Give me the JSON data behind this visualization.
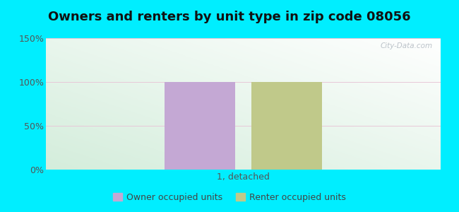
{
  "title": "Owners and renters by unit type in zip code 08056",
  "title_fontsize": 13,
  "categories": [
    "1, detached"
  ],
  "owner_values": [
    100
  ],
  "renter_values": [
    100
  ],
  "owner_color": "#c4a8d4",
  "renter_color": "#c0c98a",
  "ylim": [
    0,
    150
  ],
  "yticks": [
    0,
    50,
    100,
    150
  ],
  "ytick_labels": [
    "0%",
    "50%",
    "100%",
    "150%"
  ],
  "outer_background": "#00eeff",
  "legend_owner": "Owner occupied units",
  "legend_renter": "Renter occupied units",
  "watermark": "City-Data.com",
  "bar_width": 0.18,
  "bg_color_topleft": "#c8e8c8",
  "bg_color_topright": "#e8f4f0",
  "bg_color_bottomleft": "#d8edd8",
  "bg_color_bottomright": "#f0faf5"
}
